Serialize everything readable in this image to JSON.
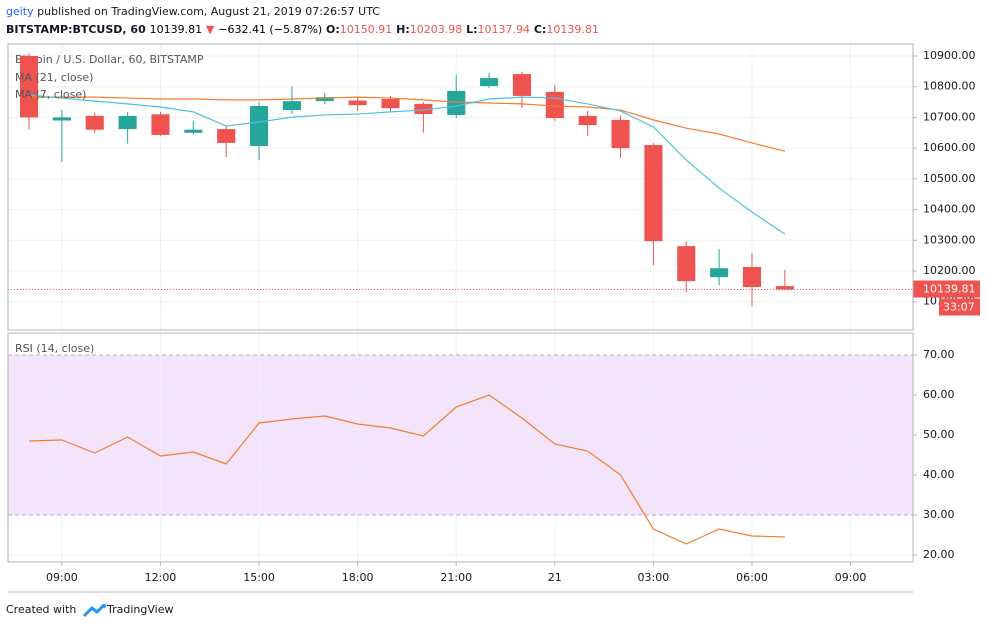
{
  "header": {
    "publisher": "geity",
    "published": "published on TradingView.com, August 21, 2019 07:26:57 UTC",
    "symbol": "BITSTAMP:BTCUSD, 60",
    "last": "10139.81",
    "arrow": "▼",
    "change": "−632.41 (−5.87%)",
    "ohlc": [
      {
        "key": "O:",
        "value": "10150.91"
      },
      {
        "key": "H:",
        "value": "10203.98"
      },
      {
        "key": "L:",
        "value": "10137.94"
      },
      {
        "key": "C:",
        "value": "10139.81"
      }
    ]
  },
  "chart_data": [
    {
      "type": "candlestick",
      "title": "Bitcoin / U.S. Dollar, 60, BITSTAMP",
      "x": [
        8,
        9,
        10,
        11,
        12,
        13,
        14,
        15,
        16,
        17,
        18,
        19,
        20,
        21,
        22,
        23,
        24,
        25,
        26,
        27,
        28,
        29,
        30,
        31
      ],
      "open": [
        10900,
        10690,
        10705,
        10662,
        10710,
        10650,
        10662,
        10607,
        10724,
        10753,
        10755,
        10760,
        10744,
        10708,
        10802,
        10841,
        10783,
        10705,
        10692,
        10610,
        10281,
        10180,
        10213,
        10150.91
      ],
      "high": [
        10910,
        10725,
        10715,
        10718,
        10718,
        10690,
        10672,
        10750,
        10800,
        10780,
        10768,
        10770,
        10750,
        10838,
        10845,
        10848,
        10805,
        10721,
        10705,
        10617,
        10297,
        10271,
        10258,
        10203.98
      ],
      "low": [
        10660,
        10555,
        10650,
        10615,
        10640,
        10645,
        10571,
        10561,
        10711,
        10743,
        10720,
        10718,
        10650,
        10698,
        10795,
        10730,
        10688,
        10640,
        10568,
        10219,
        10131,
        10154,
        10086,
        10137.94
      ],
      "close": [
        10700,
        10700,
        10660,
        10705,
        10643,
        10660,
        10617,
        10737,
        10753,
        10766,
        10740,
        10730,
        10711,
        10786,
        10828,
        10770,
        10698,
        10675,
        10600,
        10297,
        10167,
        10209,
        10148,
        10139.81
      ],
      "up_color": "#26a69a",
      "down_color": "#ef5350",
      "series": [
        {
          "name": "MA (21, close)",
          "color": "#f57c2a",
          "values": [
            10766,
            10766,
            10766,
            10763,
            10760,
            10760,
            10757,
            10757,
            10760,
            10763,
            10766,
            10763,
            10757,
            10750,
            10747,
            10744,
            10737,
            10734,
            10724,
            10692,
            10665,
            10646,
            10617,
            10590
          ]
        },
        {
          "name": "MA (7, close)",
          "color": "#4fc0de",
          "values": [
            10773,
            10763,
            10753,
            10744,
            10734,
            10718,
            10672,
            10685,
            10701,
            10708,
            10711,
            10718,
            10724,
            10737,
            10760,
            10766,
            10763,
            10744,
            10721,
            10669,
            10561,
            10470,
            10392,
            10320
          ]
        }
      ],
      "xlim": [
        7.36,
        34.9
      ],
      "xticks": [
        {
          "value": 9,
          "label": "09:00"
        },
        {
          "value": 12,
          "label": "12:00"
        },
        {
          "value": 15,
          "label": "15:00"
        },
        {
          "value": 18,
          "label": "18:00"
        },
        {
          "value": 21,
          "label": "21:00"
        },
        {
          "value": 24,
          "label": "21"
        },
        {
          "value": 27,
          "label": "03:00"
        },
        {
          "value": 30,
          "label": "06:00"
        },
        {
          "value": 33,
          "label": "09:00"
        }
      ],
      "ylim": [
        10008,
        10939
      ],
      "yticks": [
        {
          "value": 10100,
          "label": "10100.00"
        },
        {
          "value": 10200,
          "label": "10200.00"
        },
        {
          "value": 10300,
          "label": "10300.00"
        },
        {
          "value": 10400,
          "label": "10400.00"
        },
        {
          "value": 10500,
          "label": "10500.00"
        },
        {
          "value": 10600,
          "label": "10600.00"
        },
        {
          "value": 10700,
          "label": "10700.00"
        },
        {
          "value": 10800,
          "label": "10800.00"
        },
        {
          "value": 10900,
          "label": "10900.00"
        }
      ],
      "last_price": {
        "value": 10139.81,
        "label": "10139.81"
      },
      "countdown": "33:07",
      "grid": true
    },
    {
      "type": "line",
      "title": "RSI (14, close)",
      "x": [
        8,
        9,
        10,
        11,
        12,
        13,
        14,
        15,
        16,
        17,
        18,
        19,
        20,
        21,
        22,
        23,
        24,
        25,
        26,
        27,
        28,
        29,
        30,
        31
      ],
      "series": [
        {
          "color": "#f57c2a",
          "values": [
            48.5,
            48.75,
            45.5,
            49.5,
            44.75,
            45.75,
            42.75,
            53,
            54,
            54.75,
            52.75,
            51.75,
            49.75,
            57,
            60,
            54.25,
            47.75,
            46,
            40,
            26.5,
            22.75,
            26.5,
            24.75,
            24.5
          ]
        }
      ],
      "band": {
        "from": 30,
        "to": 70,
        "color": "#f3e4fb"
      },
      "xlim": [
        7.36,
        34.9
      ],
      "ylim": [
        18.25,
        75.5
      ],
      "yticks": [
        {
          "value": 20,
          "label": "20.00"
        },
        {
          "value": 30,
          "label": "30.00"
        },
        {
          "value": 40,
          "label": "40.00"
        },
        {
          "value": 50,
          "label": "50.00"
        },
        {
          "value": 60,
          "label": "60.00"
        },
        {
          "value": 70,
          "label": "70.00"
        }
      ],
      "grid": true
    }
  ],
  "footer": {
    "created_with": "Created with",
    "brand": "TradingView"
  }
}
